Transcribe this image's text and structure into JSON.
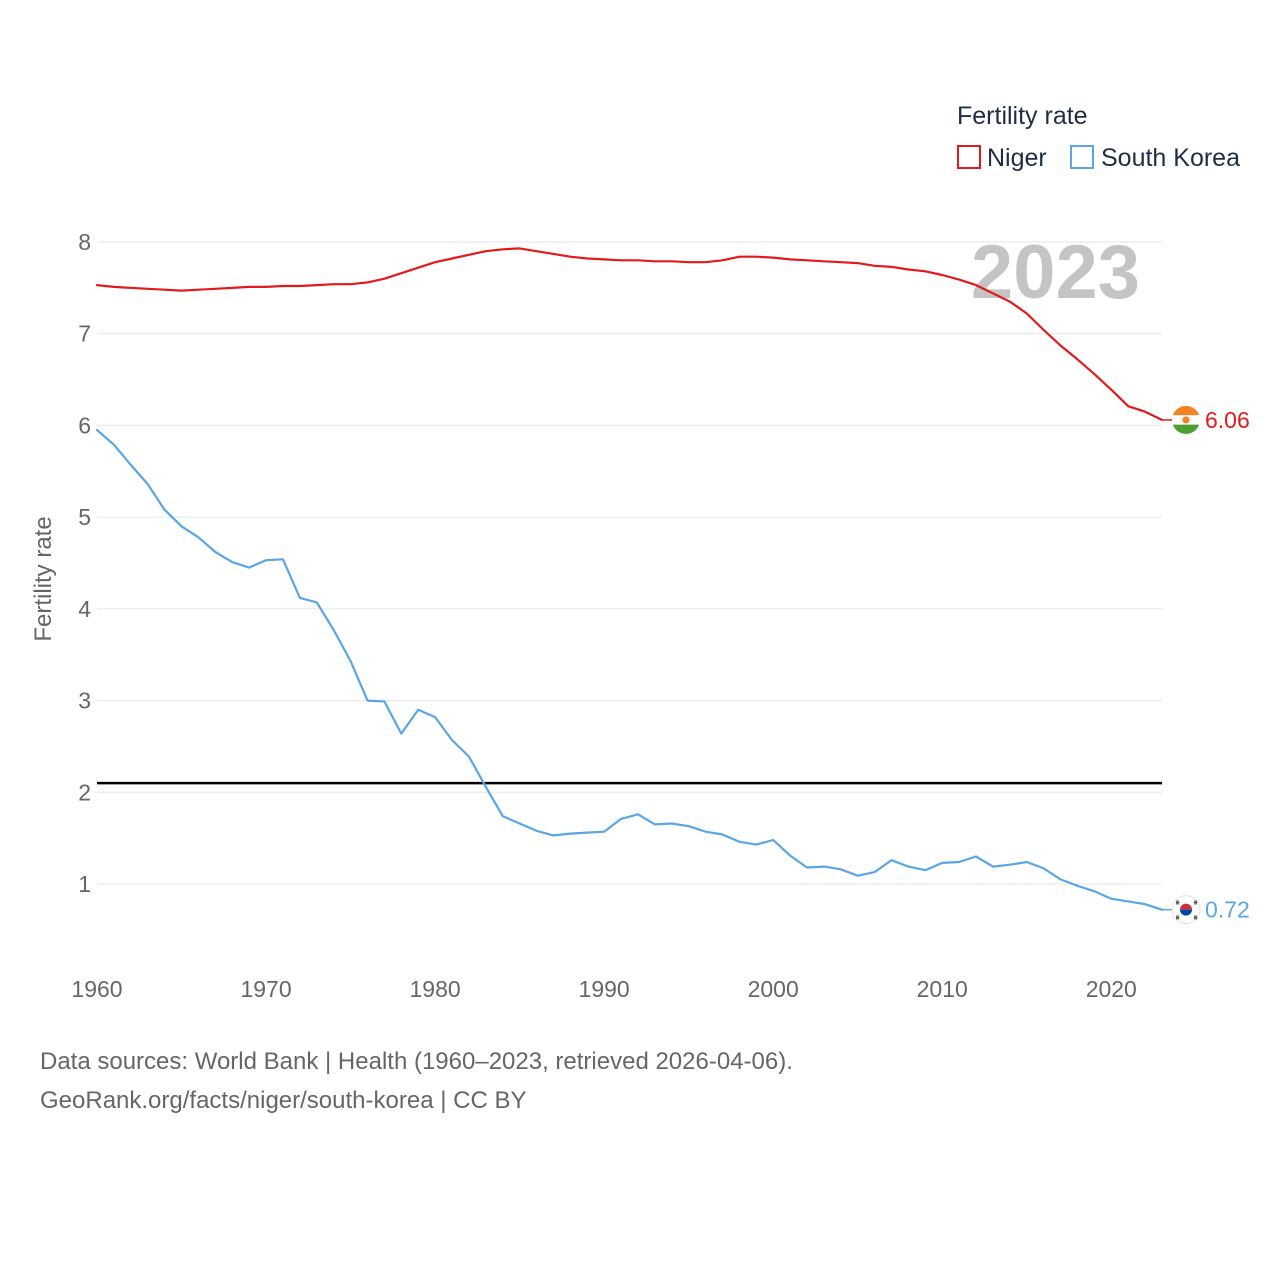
{
  "chart_data": {
    "type": "line",
    "ylabel": "Fertility rate",
    "xlabel": "",
    "xlim": [
      1960,
      2023
    ],
    "ylim": [
      0.4,
      8.2
    ],
    "x_ticks": [
      1960,
      1970,
      1980,
      1990,
      2000,
      2010,
      2020
    ],
    "y_ticks": [
      1,
      2,
      3,
      4,
      5,
      6,
      7,
      8
    ],
    "reference_line": 2.1,
    "year_label": "2023",
    "legend": {
      "title": "Fertility rate",
      "position": "top-right"
    },
    "series": [
      {
        "name": "Niger",
        "color": "#e31a1c",
        "end_label": "6.06",
        "flag": "niger-flag",
        "x": [
          1960,
          1961,
          1962,
          1963,
          1964,
          1965,
          1966,
          1967,
          1968,
          1969,
          1970,
          1971,
          1972,
          1973,
          1974,
          1975,
          1976,
          1977,
          1978,
          1979,
          1980,
          1981,
          1982,
          1983,
          1984,
          1985,
          1986,
          1987,
          1988,
          1989,
          1990,
          1991,
          1992,
          1993,
          1994,
          1995,
          1996,
          1997,
          1998,
          1999,
          2000,
          2001,
          2002,
          2003,
          2004,
          2005,
          2006,
          2007,
          2008,
          2009,
          2010,
          2011,
          2012,
          2013,
          2014,
          2015,
          2016,
          2017,
          2018,
          2019,
          2020,
          2021,
          2022,
          2023
        ],
        "values": [
          7.53,
          7.51,
          7.5,
          7.49,
          7.48,
          7.47,
          7.48,
          7.49,
          7.5,
          7.51,
          7.51,
          7.52,
          7.52,
          7.53,
          7.54,
          7.54,
          7.56,
          7.6,
          7.66,
          7.72,
          7.78,
          7.82,
          7.86,
          7.9,
          7.92,
          7.93,
          7.9,
          7.87,
          7.84,
          7.82,
          7.81,
          7.8,
          7.8,
          7.79,
          7.79,
          7.78,
          7.78,
          7.8,
          7.84,
          7.84,
          7.83,
          7.81,
          7.8,
          7.79,
          7.78,
          7.77,
          7.74,
          7.73,
          7.7,
          7.68,
          7.64,
          7.59,
          7.53,
          7.44,
          7.35,
          7.22,
          7.04,
          6.87,
          6.72,
          6.56,
          6.39,
          6.21,
          6.15,
          6.06
        ]
      },
      {
        "name": "South Korea",
        "color": "#5aa5e6",
        "end_label": "0.72",
        "flag": "south-korea-flag",
        "x": [
          1960,
          1961,
          1962,
          1963,
          1964,
          1965,
          1966,
          1967,
          1968,
          1969,
          1970,
          1971,
          1972,
          1973,
          1974,
          1975,
          1976,
          1977,
          1978,
          1979,
          1980,
          1981,
          1982,
          1983,
          1984,
          1985,
          1986,
          1987,
          1988,
          1989,
          1990,
          1991,
          1992,
          1993,
          1994,
          1995,
          1996,
          1997,
          1998,
          1999,
          2000,
          2001,
          2002,
          2003,
          2004,
          2005,
          2006,
          2007,
          2008,
          2009,
          2010,
          2011,
          2012,
          2013,
          2014,
          2015,
          2016,
          2017,
          2018,
          2019,
          2020,
          2021,
          2022,
          2023
        ],
        "values": [
          5.95,
          5.79,
          5.57,
          5.36,
          5.08,
          4.9,
          4.78,
          4.62,
          4.51,
          4.45,
          4.53,
          4.54,
          4.12,
          4.07,
          3.77,
          3.43,
          3.0,
          2.99,
          2.64,
          2.9,
          2.82,
          2.57,
          2.39,
          2.06,
          1.74,
          1.66,
          1.58,
          1.53,
          1.55,
          1.56,
          1.57,
          1.71,
          1.76,
          1.65,
          1.66,
          1.63,
          1.57,
          1.54,
          1.46,
          1.43,
          1.48,
          1.31,
          1.18,
          1.19,
          1.16,
          1.09,
          1.13,
          1.26,
          1.19,
          1.15,
          1.23,
          1.24,
          1.3,
          1.19,
          1.21,
          1.24,
          1.17,
          1.05,
          0.98,
          0.92,
          0.84,
          0.81,
          0.78,
          0.72
        ]
      }
    ]
  },
  "footer": {
    "line1": "Data sources: World Bank | Health (1960–2023, retrieved 2026-04-06).",
    "line2": "GeoRank.org/facts/niger/south-korea | CC BY"
  }
}
